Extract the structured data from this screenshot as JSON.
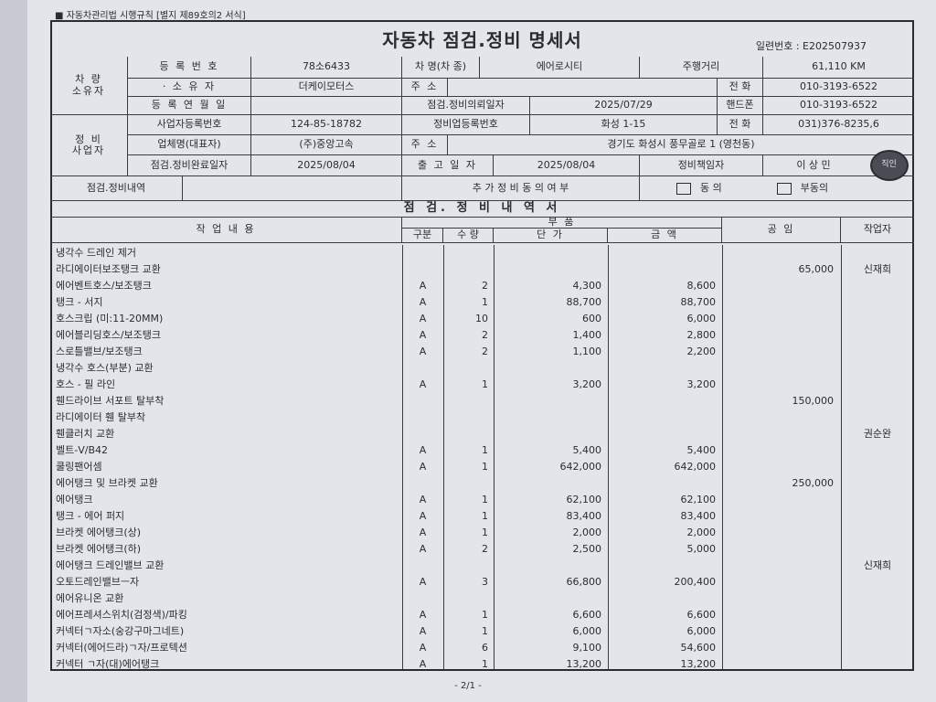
{
  "form_ref": "■ 자동차관리법 시행규칙 [별지 제89호의2 서식]",
  "title": "자동차 점검.정비 명세서",
  "serial": "일련번호 : E202507937",
  "owner": {
    "group": "차 량\n소유자",
    "reg_no_label": "등 록 번 호",
    "reg_no": "78소6433",
    "owner_label": "· 소 유 자",
    "owner": "더케이모터스",
    "reg_date_label": "등 록 연 월 일",
    "reg_date": "",
    "car_name_label": "차 명(차 종)",
    "car_name": "에어로시티",
    "mileage_label": "주행거리",
    "mileage": "61,110 KM",
    "address_label": "주 소",
    "address": "",
    "phone_label": "전 화",
    "phone": "010-3193-6522"
  },
  "shop": {
    "group": "정 비\n사업자",
    "biz_no_label": "사업자등록번호",
    "biz_no": "124-85-18782",
    "company_label": "업체명(대표자)",
    "company": "(주)중앙고속",
    "done_date_label": "점검.정비완료일자",
    "done_date": "2025/08/04",
    "request_date_label": "점검.정비의뢰일자",
    "request_date": "2025/07/29",
    "mobile_label": "핸드폰",
    "mobile": "010-3193-6522",
    "shop_reg_label": "정비업등록번호",
    "shop_reg": "화성 1-15",
    "phone_label": "전 화",
    "phone": "031)376-8235,6",
    "address_label": "주 소",
    "address": "경기도 화성시 풍무골로 1 (영천동)",
    "release_label": "출 고 일 자",
    "release_date": "2025/08/04",
    "manager_label": "정비책임자",
    "manager": "이 상 민",
    "stamp": "직인"
  },
  "details_label": "점검.정비내역",
  "details_value": "",
  "consent": {
    "label": "추 가 정 비 동 의 여 부",
    "agree": "동 의",
    "disagree": "부동의",
    "agree_checked": false,
    "disagree_checked": false
  },
  "table": {
    "title": "점 검. 정 비 내 역 서",
    "headers": {
      "work": "작 업 내 용",
      "parts": "부 품",
      "category": "구분",
      "qty": "수 량",
      "unit_price": "단 가",
      "amount": "금 액",
      "labor": "공 임",
      "worker": "작업자"
    },
    "rows": [
      {
        "work": "냉각수 드레인 제거",
        "cat": "",
        "qty": "",
        "unit": "",
        "amount": "",
        "labor": "",
        "worker": ""
      },
      {
        "work": "라디에이터보조탱크 교환",
        "cat": "",
        "qty": "",
        "unit": "",
        "amount": "",
        "labor": "65,000",
        "worker": "신재희"
      },
      {
        "work": "에어벤트호스/보조탱크",
        "cat": "A",
        "qty": "2",
        "unit": "4,300",
        "amount": "8,600",
        "labor": "",
        "worker": ""
      },
      {
        "work": "탱크 - 서지",
        "cat": "A",
        "qty": "1",
        "unit": "88,700",
        "amount": "88,700",
        "labor": "",
        "worker": ""
      },
      {
        "work": "호스크립 (미:11-20MM)",
        "cat": "A",
        "qty": "10",
        "unit": "600",
        "amount": "6,000",
        "labor": "",
        "worker": ""
      },
      {
        "work": "에어블리딩호스/보조탱크",
        "cat": "A",
        "qty": "2",
        "unit": "1,400",
        "amount": "2,800",
        "labor": "",
        "worker": ""
      },
      {
        "work": "스로틀밸브/보조탱크",
        "cat": "A",
        "qty": "2",
        "unit": "1,100",
        "amount": "2,200",
        "labor": "",
        "worker": ""
      },
      {
        "work": "냉각수 호스(부분) 교환",
        "cat": "",
        "qty": "",
        "unit": "",
        "amount": "",
        "labor": "",
        "worker": ""
      },
      {
        "work": "호스 - 필 라인",
        "cat": "A",
        "qty": "1",
        "unit": "3,200",
        "amount": "3,200",
        "labor": "",
        "worker": ""
      },
      {
        "work": "휀드라이브 서포트 탈부착",
        "cat": "",
        "qty": "",
        "unit": "",
        "amount": "",
        "labor": "150,000",
        "worker": ""
      },
      {
        "work": "라디에이터 휀 탈부착",
        "cat": "",
        "qty": "",
        "unit": "",
        "amount": "",
        "labor": "",
        "worker": ""
      },
      {
        "work": "휀클러치 교환",
        "cat": "",
        "qty": "",
        "unit": "",
        "amount": "",
        "labor": "",
        "worker": "권순완"
      },
      {
        "work": "벨트-V/B42",
        "cat": "A",
        "qty": "1",
        "unit": "5,400",
        "amount": "5,400",
        "labor": "",
        "worker": ""
      },
      {
        "work": "쿨링팬어셈",
        "cat": "A",
        "qty": "1",
        "unit": "642,000",
        "amount": "642,000",
        "labor": "",
        "worker": ""
      },
      {
        "work": "에어탱크 및 브라켓 교환",
        "cat": "",
        "qty": "",
        "unit": "",
        "amount": "",
        "labor": "250,000",
        "worker": ""
      },
      {
        "work": "에어탱크",
        "cat": "A",
        "qty": "1",
        "unit": "62,100",
        "amount": "62,100",
        "labor": "",
        "worker": ""
      },
      {
        "work": "탱크 - 에어 퍼지",
        "cat": "A",
        "qty": "1",
        "unit": "83,400",
        "amount": "83,400",
        "labor": "",
        "worker": ""
      },
      {
        "work": "브라켓 에어탱크(상)",
        "cat": "A",
        "qty": "1",
        "unit": "2,000",
        "amount": "2,000",
        "labor": "",
        "worker": ""
      },
      {
        "work": "브라켓 에어탱크(하)",
        "cat": "A",
        "qty": "2",
        "unit": "2,500",
        "amount": "5,000",
        "labor": "",
        "worker": ""
      },
      {
        "work": "에어탱크 드레인밸브 교환",
        "cat": "",
        "qty": "",
        "unit": "",
        "amount": "",
        "labor": "",
        "worker": "신재희"
      },
      {
        "work": "오토드레인밸브ㅡ자",
        "cat": "A",
        "qty": "3",
        "unit": "66,800",
        "amount": "200,400",
        "labor": "",
        "worker": ""
      },
      {
        "work": "에어유니온 교환",
        "cat": "",
        "qty": "",
        "unit": "",
        "amount": "",
        "labor": "",
        "worker": ""
      },
      {
        "work": "에어프레셔스위치(검정색)/파킹",
        "cat": "A",
        "qty": "1",
        "unit": "6,600",
        "amount": "6,600",
        "labor": "",
        "worker": ""
      },
      {
        "work": "커넥터ㄱ자소(숭강구마그네트)",
        "cat": "A",
        "qty": "1",
        "unit": "6,000",
        "amount": "6,000",
        "labor": "",
        "worker": ""
      },
      {
        "work": "커넥터(에어드라)ㄱ자/프로텍션",
        "cat": "A",
        "qty": "6",
        "unit": "9,100",
        "amount": "54,600",
        "labor": "",
        "worker": ""
      },
      {
        "work": "커넥터 ㄱ자(대)에어탱크",
        "cat": "A",
        "qty": "1",
        "unit": "13,200",
        "amount": "13,200",
        "labor": "",
        "worker": ""
      }
    ]
  },
  "page_number": "- 2/1 -"
}
